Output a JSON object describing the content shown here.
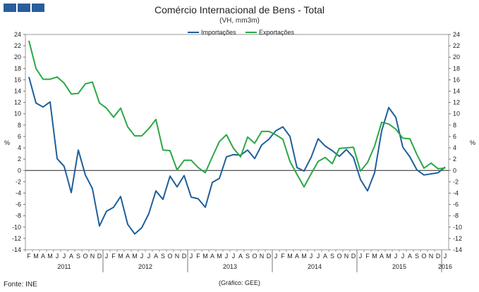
{
  "header": {
    "title": "Comércio Internacional de Bens - Total",
    "subtitle": "(VH, mm3m)"
  },
  "footer": {
    "source": "Fonte: INE",
    "credit": "(Gráfico: GEE)"
  },
  "chart_data": {
    "type": "line",
    "title": "Comércio Internacional de Bens - Total",
    "subtitle": "(VH, mm3m)",
    "ylabel": "%",
    "ylim": [
      -14,
      24
    ],
    "yticks": [
      -14,
      -12,
      -10,
      -8,
      -6,
      -4,
      -2,
      0,
      2,
      4,
      6,
      8,
      10,
      12,
      14,
      16,
      18,
      20,
      22,
      24
    ],
    "legend_position": "top-center",
    "x_month_labels": [
      "F",
      "M",
      "A",
      "M",
      "J",
      "J",
      "A",
      "S",
      "O",
      "N",
      "D",
      "J",
      "F",
      "M",
      "A",
      "M",
      "J",
      "J",
      "A",
      "S",
      "O",
      "N",
      "D",
      "J",
      "F",
      "M",
      "A",
      "M",
      "J",
      "J",
      "A",
      "S",
      "O",
      "N",
      "D",
      "J",
      "F",
      "M",
      "A",
      "M",
      "J",
      "J",
      "A",
      "S",
      "O",
      "N",
      "D",
      "J",
      "F",
      "M",
      "A",
      "M",
      "J",
      "J",
      "A",
      "S",
      "O",
      "N",
      "D",
      "J"
    ],
    "x_year_labels": [
      "2011",
      "2012",
      "2013",
      "2014",
      "2015",
      "2016"
    ],
    "series": [
      {
        "name": "Importações",
        "color": "#1f5f9a",
        "values": [
          16.5,
          11.9,
          11.2,
          12.1,
          2.1,
          0.7,
          -3.9,
          3.6,
          -0.8,
          -3.2,
          -9.8,
          -7.2,
          -6.5,
          -4.6,
          -9.5,
          -11.2,
          -10.1,
          -7.6,
          -3.6,
          -5.1,
          -1.0,
          -2.9,
          -0.9,
          -4.7,
          -5.0,
          -6.5,
          -2.1,
          -1.4,
          2.4,
          2.8,
          2.7,
          3.6,
          2.1,
          4.5,
          5.5,
          7.0,
          7.7,
          6.0,
          0.5,
          -0.1,
          2.3,
          5.6,
          4.3,
          3.5,
          2.5,
          3.7,
          2.3,
          -1.6,
          -3.6,
          -0.4,
          7.0,
          11.1,
          9.4,
          4.1,
          2.4,
          0.1,
          -0.8,
          -0.6,
          -0.4,
          0.6
        ]
      },
      {
        "name": "Exportações",
        "color": "#2aa845",
        "values": [
          22.9,
          18.0,
          16.1,
          16.1,
          16.5,
          15.4,
          13.5,
          13.6,
          15.3,
          15.6,
          11.9,
          11.0,
          9.4,
          11.0,
          7.7,
          6.1,
          6.1,
          7.4,
          9.0,
          3.6,
          3.5,
          0.1,
          1.8,
          1.8,
          0.5,
          -0.4,
          2.4,
          5.1,
          6.3,
          3.9,
          2.4,
          5.9,
          4.8,
          6.9,
          6.9,
          6.3,
          5.5,
          1.6,
          -0.7,
          -2.9,
          -0.6,
          1.6,
          2.3,
          1.2,
          3.9,
          4.0,
          4.1,
          -0.1,
          1.4,
          4.3,
          8.5,
          8.2,
          7.3,
          5.7,
          5.6,
          2.8,
          0.4,
          1.3,
          0.3,
          0.4
        ]
      }
    ]
  }
}
